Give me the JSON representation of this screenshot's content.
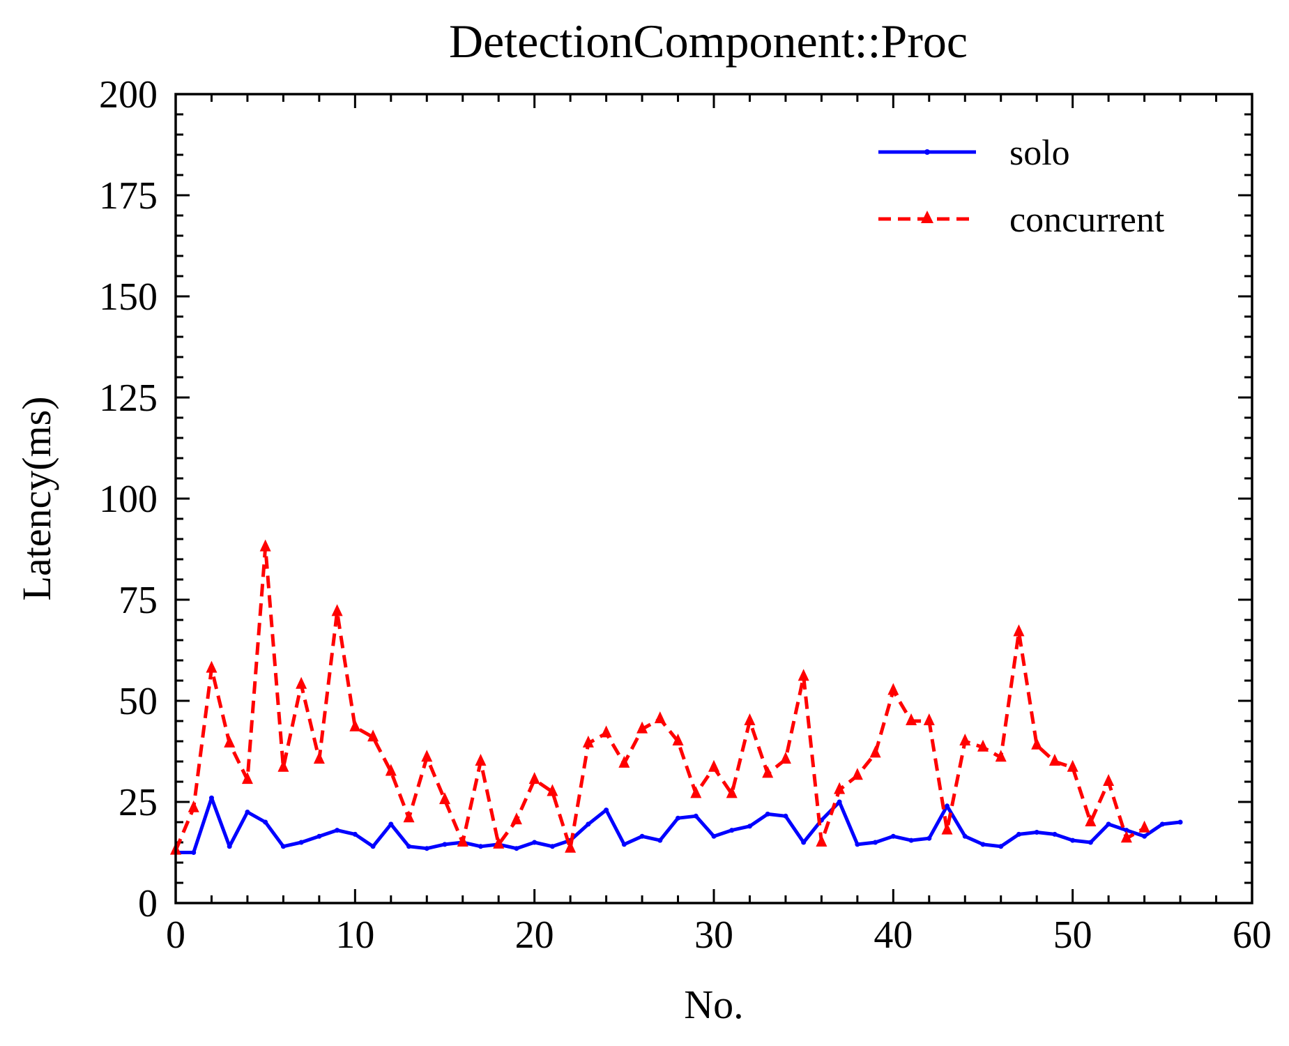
{
  "chart_data": {
    "type": "line",
    "title": "DetectionComponent::Proc",
    "xlabel": "No.",
    "ylabel": "Latency(ms)",
    "xlim": [
      0,
      60
    ],
    "ylim": [
      0,
      200
    ],
    "xticks": [
      "0",
      "10",
      "20",
      "30",
      "40",
      "50",
      "60"
    ],
    "yticks": [
      "0",
      "25",
      "50",
      "75",
      "100",
      "125",
      "150",
      "175",
      "200"
    ],
    "grid": false,
    "legend_position": "top-right",
    "series": [
      {
        "name": "solo",
        "color": "#0000ff",
        "linestyle": "solid",
        "marker": "dot",
        "x": [
          0,
          1,
          2,
          3,
          4,
          5,
          6,
          7,
          8,
          9,
          10,
          11,
          12,
          13,
          14,
          15,
          16,
          17,
          18,
          19,
          20,
          21,
          22,
          23,
          24,
          25,
          26,
          27,
          28,
          29,
          30,
          31,
          32,
          33,
          34,
          35,
          36,
          37,
          38,
          39,
          40,
          41,
          42,
          43,
          44,
          45,
          46,
          47,
          48,
          49,
          50,
          51,
          52,
          53,
          54,
          55,
          56
        ],
        "values": [
          12.5,
          12.5,
          26,
          14,
          22.5,
          20,
          14,
          15,
          16.5,
          18,
          17,
          14,
          19.5,
          14,
          13.5,
          14.5,
          15,
          14,
          14.5,
          13.5,
          15,
          14,
          15.5,
          19.5,
          23,
          14.5,
          16.5,
          15.5,
          21,
          21.5,
          16.5,
          18,
          19,
          22,
          21.5,
          15,
          20.5,
          25,
          14.5,
          15,
          16.5,
          15.5,
          16,
          24,
          16.5,
          14.5,
          14,
          17,
          17.5,
          17,
          15.5,
          15,
          19.5,
          18,
          16.5,
          19.5,
          20
        ]
      },
      {
        "name": "concurrent",
        "color": "#ff0000",
        "linestyle": "dashed",
        "marker": "triangle",
        "x": [
          0,
          1,
          2,
          3,
          4,
          5,
          6,
          7,
          8,
          9,
          10,
          11,
          12,
          13,
          14,
          15,
          16,
          17,
          18,
          19,
          20,
          21,
          22,
          23,
          24,
          25,
          26,
          27,
          28,
          29,
          30,
          31,
          32,
          33,
          34,
          35,
          36,
          37,
          38,
          39,
          40,
          41,
          42,
          43,
          44,
          45,
          46,
          47,
          48,
          49,
          50,
          51,
          52,
          53,
          54
        ],
        "values": [
          13,
          23.5,
          58,
          39.5,
          30.5,
          88,
          33.5,
          54,
          35.5,
          72,
          43.5,
          41,
          32.5,
          21,
          36,
          25.5,
          15,
          35,
          14.5,
          20.5,
          30.5,
          27.5,
          13.5,
          39.5,
          42,
          34.5,
          43,
          45.5,
          40,
          27,
          33.5,
          27,
          45,
          32,
          35.5,
          56,
          15,
          28,
          31.5,
          37,
          52.5,
          45,
          45,
          18,
          40,
          38.5,
          36,
          67,
          39,
          35,
          33.5,
          20,
          30,
          16,
          18.5
        ]
      }
    ]
  }
}
